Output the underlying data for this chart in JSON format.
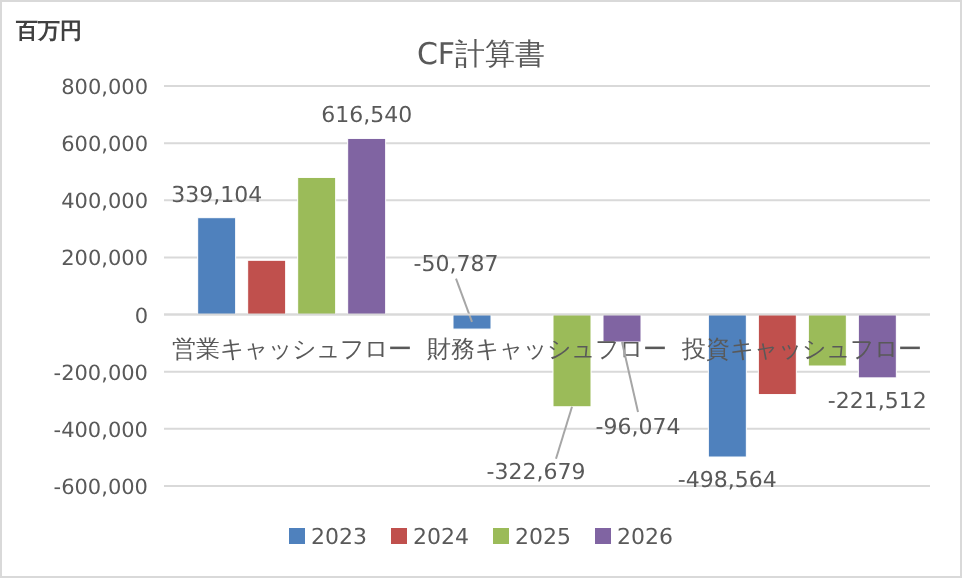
{
  "chart_data": {
    "type": "bar",
    "title": "CF計算書",
    "ylabel": "百万円",
    "categories": [
      "営業キャッシュフロー",
      "財務キャッシュフロー",
      "投資キャッシュフロー"
    ],
    "series": [
      {
        "name": "2023",
        "color": "#4f81bd",
        "values": [
          339104,
          -50787,
          -498564
        ],
        "value_labels": [
          "339,104",
          "-50,787",
          "-498,564"
        ]
      },
      {
        "name": "2024",
        "color": "#c0504d",
        "values": [
          190000,
          null,
          -280000
        ],
        "value_labels": [
          null,
          null,
          null
        ]
      },
      {
        "name": "2025",
        "color": "#9bbb59",
        "values": [
          480000,
          -322679,
          -180000
        ],
        "value_labels": [
          null,
          "-322,679",
          null
        ]
      },
      {
        "name": "2026",
        "color": "#8064a2",
        "values": [
          616540,
          -96074,
          -221512
        ],
        "value_labels": [
          "616,540",
          "-96,074",
          "-221,512"
        ]
      }
    ],
    "ylim": [
      -600000,
      800000
    ],
    "yticks": [
      {
        "value": -600000,
        "label": "-600,000"
      },
      {
        "value": -400000,
        "label": "-400,000"
      },
      {
        "value": -200000,
        "label": "-200,000"
      },
      0,
      {
        "value": 200000,
        "label": "200,000"
      },
      {
        "value": 400000,
        "label": "400,000"
      },
      {
        "value": 600000,
        "label": "600,000"
      },
      {
        "value": 800000,
        "label": "800,000"
      }
    ],
    "grid": "y",
    "legend": "bottom"
  }
}
